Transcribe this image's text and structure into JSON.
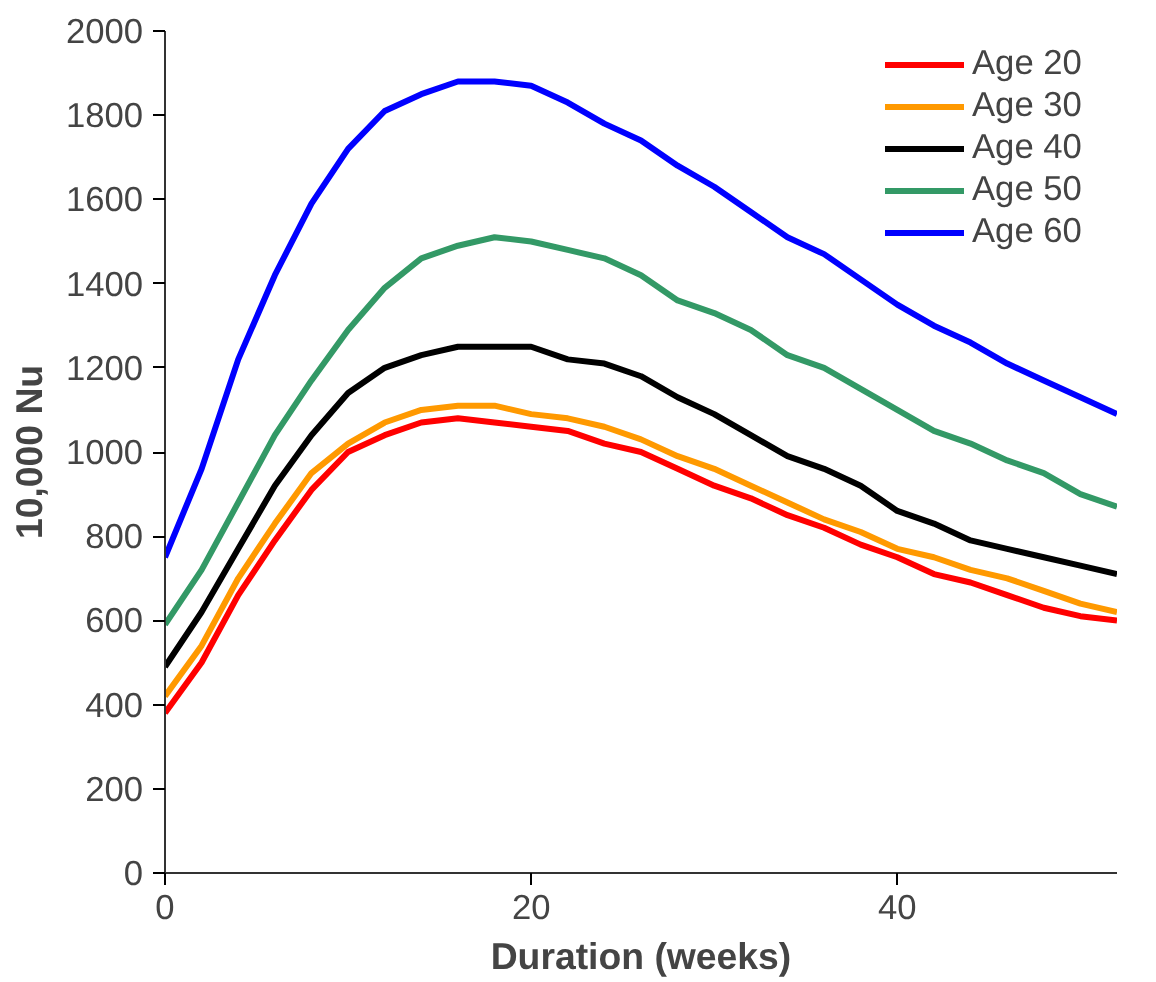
{
  "chart_data": {
    "type": "line",
    "xlabel": "Duration (weeks)",
    "ylabel": "10,000 Nu",
    "x": [
      0,
      2,
      4,
      6,
      8,
      10,
      12,
      14,
      16,
      18,
      20,
      22,
      24,
      26,
      28,
      30,
      32,
      34,
      36,
      38,
      40,
      42,
      44,
      46,
      48,
      50,
      52
    ],
    "series": [
      {
        "name": "Age 20",
        "color": "#ff0000",
        "values": [
          380,
          500,
          660,
          790,
          910,
          1000,
          1040,
          1070,
          1080,
          1070,
          1060,
          1050,
          1020,
          1000,
          960,
          920,
          890,
          850,
          820,
          780,
          750,
          710,
          690,
          660,
          630,
          610,
          600
        ]
      },
      {
        "name": "Age 30",
        "color": "#ff9900",
        "values": [
          420,
          540,
          700,
          830,
          950,
          1020,
          1070,
          1100,
          1110,
          1110,
          1090,
          1080,
          1060,
          1030,
          990,
          960,
          920,
          880,
          840,
          810,
          770,
          750,
          720,
          700,
          670,
          640,
          620
        ]
      },
      {
        "name": "Age 40",
        "color": "#000000",
        "values": [
          490,
          620,
          770,
          920,
          1040,
          1140,
          1200,
          1230,
          1250,
          1250,
          1250,
          1220,
          1210,
          1180,
          1130,
          1090,
          1040,
          990,
          960,
          920,
          860,
          830,
          790,
          770,
          750,
          730,
          710
        ]
      },
      {
        "name": "Age 50",
        "color": "#339966",
        "values": [
          590,
          720,
          880,
          1040,
          1170,
          1290,
          1390,
          1460,
          1490,
          1510,
          1500,
          1480,
          1460,
          1420,
          1360,
          1330,
          1290,
          1230,
          1200,
          1150,
          1100,
          1050,
          1020,
          980,
          950,
          900,
          870
        ]
      },
      {
        "name": "Age 60",
        "color": "#0000ff",
        "values": [
          750,
          960,
          1220,
          1420,
          1590,
          1720,
          1810,
          1850,
          1880,
          1880,
          1870,
          1830,
          1780,
          1740,
          1680,
          1630,
          1570,
          1510,
          1470,
          1410,
          1350,
          1300,
          1260,
          1210,
          1170,
          1130,
          1090
        ]
      }
    ],
    "xlim": [
      0,
      52
    ],
    "xticks": [
      0,
      20,
      40
    ],
    "ylim": [
      0,
      2000
    ],
    "yticks": [
      0,
      200,
      400,
      600,
      800,
      1000,
      1200,
      1400,
      1600,
      1800,
      2000
    ],
    "legend": "top right",
    "grid": false,
    "marker": "none",
    "line_style": "solid"
  }
}
